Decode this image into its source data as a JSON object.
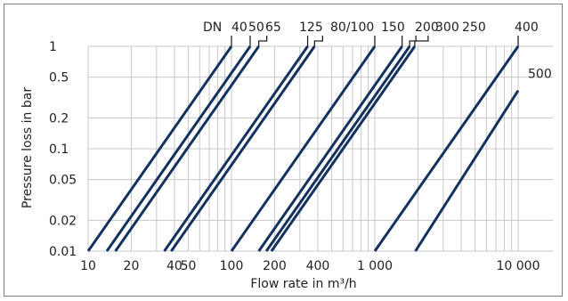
{
  "chart_data": {
    "type": "line",
    "title": "",
    "xlabel": "Flow rate in m³/h",
    "ylabel": "Pressure loss in bar",
    "x_scale": "log",
    "y_scale": "log",
    "xlim": [
      10,
      10000
    ],
    "ylim": [
      0.01,
      1
    ],
    "grid": true,
    "x_ticks": [
      {
        "value": 10,
        "label": "10"
      },
      {
        "value": 20,
        "label": "20"
      },
      {
        "value": 40,
        "label": "40"
      },
      {
        "value": 50,
        "label": "50"
      },
      {
        "value": 100,
        "label": "100"
      },
      {
        "value": 200,
        "label": "200"
      },
      {
        "value": 400,
        "label": "400"
      },
      {
        "value": 1000,
        "label": "1 000"
      },
      {
        "value": 10000,
        "label": "10 000"
      }
    ],
    "y_ticks": [
      {
        "value": 1,
        "label": "1"
      },
      {
        "value": 0.5,
        "label": "0.5"
      },
      {
        "value": 0.2,
        "label": "0.2"
      },
      {
        "value": 0.1,
        "label": "0.1"
      },
      {
        "value": 0.05,
        "label": "0.05"
      },
      {
        "value": 0.02,
        "label": "0.02"
      },
      {
        "value": 0.01,
        "label": "0.01"
      }
    ],
    "dn_prefix": "DN",
    "series": [
      {
        "name": "40",
        "x": [
          10,
          100
        ],
        "y": [
          0.01,
          1
        ]
      },
      {
        "name": "50",
        "x": [
          13.5,
          135
        ],
        "y": [
          0.01,
          1
        ]
      },
      {
        "name": "65",
        "x": [
          15.5,
          155
        ],
        "y": [
          0.01,
          1
        ]
      },
      {
        "name": "125",
        "x": [
          34,
          340
        ],
        "y": [
          0.01,
          1
        ]
      },
      {
        "name": "80/100",
        "x": [
          38,
          380
        ],
        "y": [
          0.01,
          1
        ]
      },
      {
        "name": "150",
        "x": [
          100,
          1000
        ],
        "y": [
          0.01,
          1
        ]
      },
      {
        "name": "200",
        "x": [
          155,
          1550
        ],
        "y": [
          0.01,
          1
        ]
      },
      {
        "name": "300",
        "x": [
          175,
          1750
        ],
        "y": [
          0.01,
          1
        ]
      },
      {
        "name": "250",
        "x": [
          190,
          1900
        ],
        "y": [
          0.01,
          1
        ]
      },
      {
        "name": "400",
        "x": [
          1000,
          10000
        ],
        "y": [
          0.01,
          1
        ]
      },
      {
        "name": "500",
        "x": [
          1920,
          10000
        ],
        "y": [
          0.01,
          0.37
        ]
      }
    ]
  }
}
